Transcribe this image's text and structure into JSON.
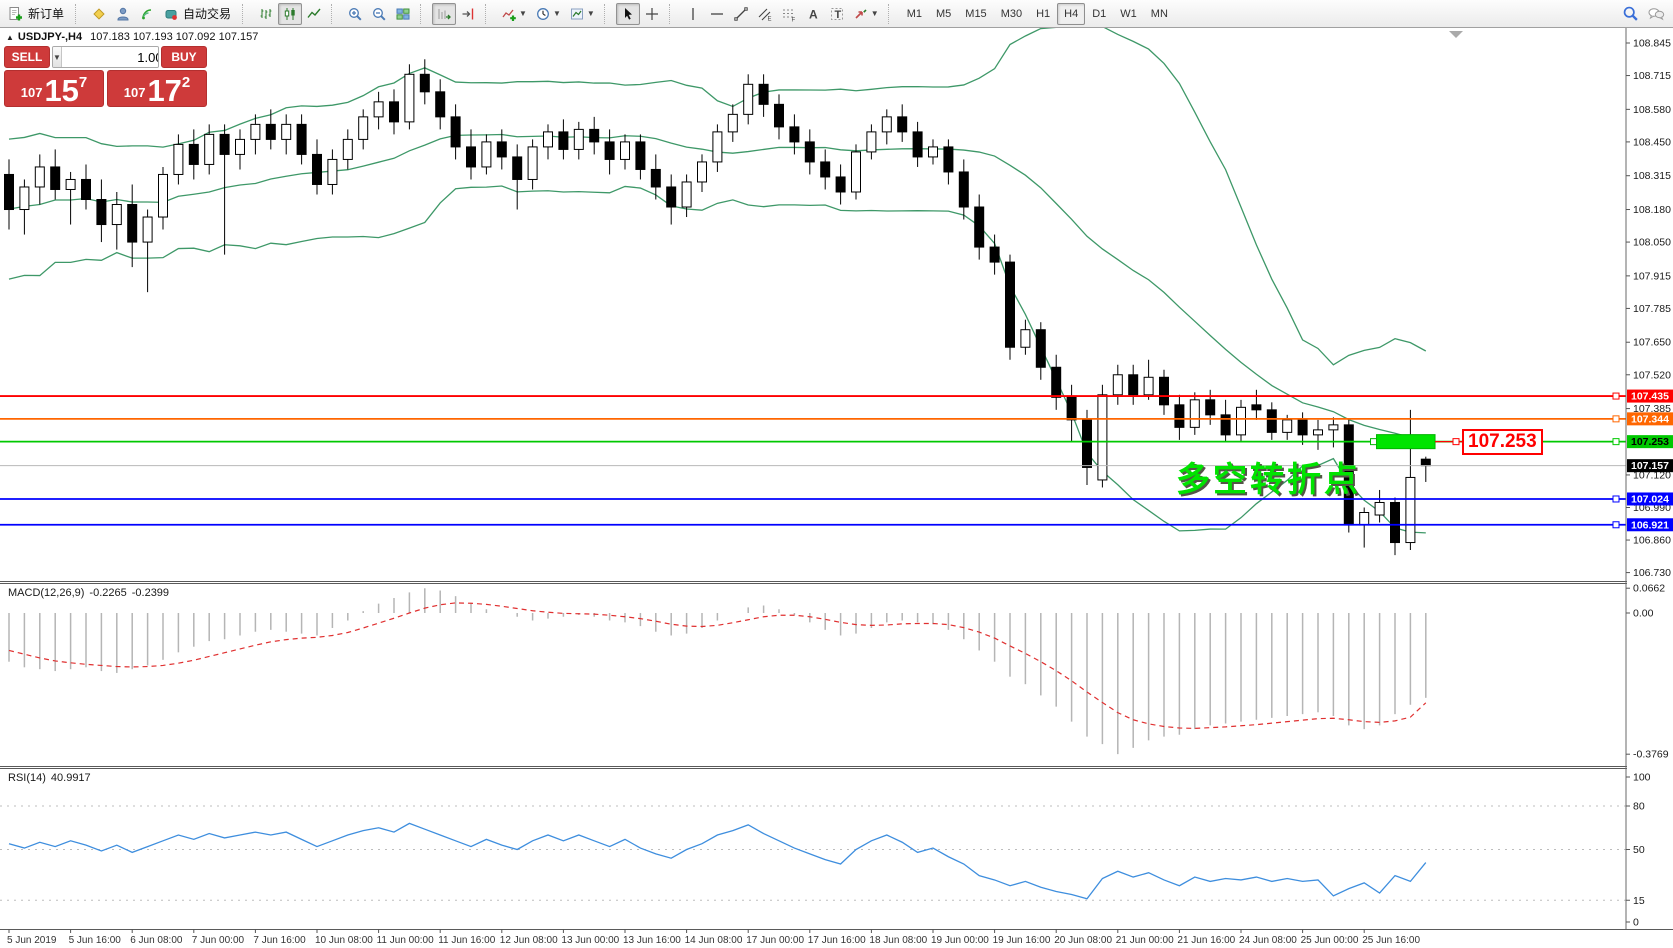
{
  "toolbar": {
    "new_order_label": "新订单",
    "autotrading_label": "自动交易",
    "timeframes": [
      "M1",
      "M5",
      "M15",
      "M30",
      "H1",
      "H4",
      "D1",
      "W1",
      "MN"
    ],
    "active_timeframe": "H4"
  },
  "chart": {
    "symbol": "USDJPY-,H4",
    "ohlc_text": "107.183 107.193 107.092 107.157",
    "collapse_arrow": "▲"
  },
  "trade_panel": {
    "sell_label": "SELL",
    "buy_label": "BUY",
    "volume": "1.00",
    "sell_price": {
      "prefix": "107",
      "big": "15",
      "sup": "7"
    },
    "buy_price": {
      "prefix": "107",
      "big": "17",
      "sup": "2"
    }
  },
  "objects": {
    "annotation": {
      "text": "多空转折点",
      "color": "#00E400"
    },
    "price_label": {
      "text": "107.253",
      "color": "#FF0000"
    },
    "rectangle": {
      "color": "#00E400",
      "price_top": 107.281,
      "price_bottom": 107.225,
      "bar_start": 88.8,
      "bar_end": 92.6
    }
  },
  "chart_data": {
    "type": "candlestick",
    "symbol": "USDJPY-,H4",
    "timeframe": "H4",
    "ohlc_display": [
      "107.183",
      "107.193",
      "107.092",
      "107.157"
    ],
    "x_labels": [
      "5 Jun 2019",
      "5 Jun 16:00",
      "6 Jun 08:00",
      "7 Jun 00:00",
      "7 Jun 16:00",
      "10 Jun 08:00",
      "11 Jun 00:00",
      "11 Jun 16:00",
      "12 Jun 08:00",
      "13 Jun 00:00",
      "13 Jun 16:00",
      "14 Jun 08:00",
      "17 Jun 00:00",
      "17 Jun 16:00",
      "18 Jun 08:00",
      "19 Jun 00:00",
      "19 Jun 16:00",
      "20 Jun 08:00",
      "21 Jun 00:00",
      "21 Jun 16:00",
      "24 Jun 08:00",
      "25 Jun 00:00",
      "25 Jun 16:00"
    ],
    "bars_per_label": 4,
    "price_axis_ticks": [
      "108.845",
      "108.715",
      "108.580",
      "108.450",
      "108.315",
      "108.180",
      "108.050",
      "107.915",
      "107.785",
      "107.650",
      "107.520",
      "107.385",
      "107.120",
      "106.990",
      "106.860",
      "106.730"
    ],
    "hlines": [
      {
        "price": 107.435,
        "color": "#FF0000",
        "label": "107.435",
        "text_color": "#FFFFFF"
      },
      {
        "price": 107.344,
        "color": "#FF6600",
        "label": "107.344",
        "text_color": "#FFFFFF"
      },
      {
        "price": 107.253,
        "color": "#00C800",
        "label": "107.253",
        "text_color": "#000000"
      },
      {
        "price": 107.024,
        "color": "#0000FF",
        "label": "107.024",
        "text_color": "#FFFFFF"
      },
      {
        "price": 106.921,
        "color": "#0000FF",
        "label": "106.921",
        "text_color": "#FFFFFF"
      }
    ],
    "current_price": {
      "value": 107.157,
      "label": "107.157",
      "badge_bg": "#000000"
    },
    "bollinger": {
      "period": 20,
      "deviation": 2,
      "color": "#3E9868",
      "seed": [
        108.05,
        108.2,
        107.9,
        108.3,
        108.1,
        108.4,
        108.0,
        108.25,
        108.15,
        108.35,
        107.95,
        108.2,
        108.3,
        108.05,
        108.25,
        108.4,
        108.1,
        108.3,
        108.2
      ]
    },
    "candles": [
      [
        108.32,
        108.38,
        108.1,
        108.18
      ],
      [
        108.18,
        108.3,
        108.08,
        108.27
      ],
      [
        108.27,
        108.4,
        108.2,
        108.35
      ],
      [
        108.35,
        108.42,
        108.22,
        108.26
      ],
      [
        108.26,
        108.33,
        108.12,
        108.3
      ],
      [
        108.3,
        108.36,
        108.18,
        108.22
      ],
      [
        108.22,
        108.3,
        108.05,
        108.12
      ],
      [
        108.12,
        108.25,
        108.02,
        108.2
      ],
      [
        108.2,
        108.28,
        107.95,
        108.05
      ],
      [
        108.05,
        108.18,
        107.85,
        108.15
      ],
      [
        108.15,
        108.35,
        108.1,
        108.32
      ],
      [
        108.32,
        108.48,
        108.28,
        108.44
      ],
      [
        108.44,
        108.5,
        108.3,
        108.36
      ],
      [
        108.36,
        108.52,
        108.32,
        108.48
      ],
      [
        108.48,
        108.52,
        108.0,
        108.4
      ],
      [
        108.4,
        108.5,
        108.34,
        108.46
      ],
      [
        108.46,
        108.56,
        108.4,
        108.52
      ],
      [
        108.52,
        108.58,
        108.42,
        108.46
      ],
      [
        108.46,
        108.56,
        108.4,
        108.52
      ],
      [
        108.52,
        108.56,
        108.36,
        108.4
      ],
      [
        108.4,
        108.46,
        108.24,
        108.28
      ],
      [
        108.28,
        108.42,
        108.24,
        108.38
      ],
      [
        108.38,
        108.5,
        108.34,
        108.46
      ],
      [
        108.46,
        108.58,
        108.42,
        108.55
      ],
      [
        108.55,
        108.65,
        108.5,
        108.61
      ],
      [
        108.61,
        108.66,
        108.48,
        108.53
      ],
      [
        108.53,
        108.76,
        108.5,
        108.72
      ],
      [
        108.72,
        108.78,
        108.6,
        108.65
      ],
      [
        108.65,
        108.7,
        108.5,
        108.55
      ],
      [
        108.55,
        108.6,
        108.38,
        108.43
      ],
      [
        108.43,
        108.5,
        108.3,
        108.35
      ],
      [
        108.35,
        108.48,
        108.32,
        108.45
      ],
      [
        108.45,
        108.5,
        108.34,
        108.39
      ],
      [
        108.39,
        108.44,
        108.18,
        108.3
      ],
      [
        108.3,
        108.46,
        108.26,
        108.43
      ],
      [
        108.43,
        108.52,
        108.38,
        108.49
      ],
      [
        108.49,
        108.54,
        108.38,
        108.42
      ],
      [
        108.42,
        108.53,
        108.38,
        108.5
      ],
      [
        108.5,
        108.55,
        108.4,
        108.45
      ],
      [
        108.45,
        108.5,
        108.32,
        108.38
      ],
      [
        108.38,
        108.48,
        108.34,
        108.45
      ],
      [
        108.45,
        108.48,
        108.3,
        108.34
      ],
      [
        108.34,
        108.4,
        108.22,
        108.27
      ],
      [
        108.27,
        108.32,
        108.12,
        108.19
      ],
      [
        108.19,
        108.32,
        108.15,
        108.29
      ],
      [
        108.29,
        108.4,
        108.25,
        108.37
      ],
      [
        108.37,
        108.52,
        108.33,
        108.49
      ],
      [
        108.49,
        108.6,
        108.45,
        108.56
      ],
      [
        108.56,
        108.72,
        108.52,
        108.68
      ],
      [
        108.68,
        108.72,
        108.55,
        108.6
      ],
      [
        108.6,
        108.64,
        108.46,
        108.51
      ],
      [
        108.51,
        108.56,
        108.4,
        108.45
      ],
      [
        108.45,
        108.5,
        108.32,
        108.37
      ],
      [
        108.37,
        108.42,
        108.26,
        108.31
      ],
      [
        108.31,
        108.36,
        108.2,
        108.25
      ],
      [
        108.25,
        108.44,
        108.22,
        108.41
      ],
      [
        108.41,
        108.52,
        108.38,
        108.49
      ],
      [
        108.49,
        108.58,
        108.44,
        108.55
      ],
      [
        108.55,
        108.6,
        108.45,
        108.49
      ],
      [
        108.49,
        108.53,
        108.35,
        108.39
      ],
      [
        108.39,
        108.46,
        108.36,
        108.43
      ],
      [
        108.43,
        108.46,
        108.28,
        108.33
      ],
      [
        108.33,
        108.38,
        108.14,
        108.19
      ],
      [
        108.19,
        108.24,
        107.98,
        108.03
      ],
      [
        108.03,
        108.08,
        107.92,
        107.97
      ],
      [
        107.97,
        108.0,
        107.58,
        107.63
      ],
      [
        107.63,
        107.74,
        107.6,
        107.7
      ],
      [
        107.7,
        107.73,
        107.5,
        107.55
      ],
      [
        107.55,
        107.6,
        107.38,
        107.43
      ],
      [
        107.43,
        107.48,
        107.25,
        107.34
      ],
      [
        107.34,
        107.38,
        107.08,
        107.15
      ],
      [
        107.1,
        107.48,
        107.07,
        107.44
      ],
      [
        107.44,
        107.56,
        107.4,
        107.52
      ],
      [
        107.52,
        107.56,
        107.4,
        107.44
      ],
      [
        107.44,
        107.58,
        107.42,
        107.51
      ],
      [
        107.51,
        107.54,
        107.36,
        107.4
      ],
      [
        107.4,
        107.44,
        107.26,
        107.31
      ],
      [
        107.31,
        107.45,
        107.28,
        107.42
      ],
      [
        107.42,
        107.46,
        107.32,
        107.36
      ],
      [
        107.36,
        107.42,
        107.25,
        107.28
      ],
      [
        107.28,
        107.42,
        107.25,
        107.39
      ],
      [
        107.4,
        107.46,
        107.34,
        107.38
      ],
      [
        107.38,
        107.41,
        107.26,
        107.29
      ],
      [
        107.29,
        107.36,
        107.26,
        107.34
      ],
      [
        107.34,
        107.37,
        107.24,
        107.28
      ],
      [
        107.28,
        107.34,
        107.22,
        107.3
      ],
      [
        107.3,
        107.35,
        107.23,
        107.32
      ],
      [
        107.32,
        107.34,
        106.89,
        106.92
      ],
      [
        106.92,
        106.99,
        106.83,
        106.97
      ],
      [
        106.96,
        107.06,
        106.93,
        107.01
      ],
      [
        107.01,
        107.03,
        106.8,
        106.85
      ],
      [
        106.85,
        107.38,
        106.82,
        107.11
      ],
      [
        107.183,
        107.193,
        107.092,
        107.157
      ]
    ],
    "macd": {
      "label": "MACD(12,26,9)",
      "value_main": "-0.2265",
      "value_signal": "-0.2399",
      "axis_labels": [
        "0.0662",
        "0.00",
        "-0.3769"
      ],
      "axis_values": [
        0.0662,
        0,
        -0.3769
      ],
      "histogram": [
        -0.13,
        -0.145,
        -0.15,
        -0.155,
        -0.15,
        -0.145,
        -0.155,
        -0.16,
        -0.15,
        -0.14,
        -0.125,
        -0.105,
        -0.09,
        -0.075,
        -0.07,
        -0.06,
        -0.05,
        -0.045,
        -0.05,
        -0.055,
        -0.06,
        -0.04,
        -0.02,
        0.005,
        0.025,
        0.04,
        0.055,
        0.066,
        0.06,
        0.045,
        0.025,
        0.01,
        0,
        -0.01,
        -0.02,
        -0.015,
        -0.01,
        -0.005,
        -0.01,
        -0.02,
        -0.025,
        -0.035,
        -0.05,
        -0.06,
        -0.055,
        -0.04,
        -0.02,
        0,
        0.015,
        0.02,
        0.01,
        -0.005,
        -0.025,
        -0.045,
        -0.06,
        -0.055,
        -0.04,
        -0.025,
        -0.02,
        -0.025,
        -0.03,
        -0.045,
        -0.07,
        -0.1,
        -0.13,
        -0.17,
        -0.19,
        -0.22,
        -0.25,
        -0.29,
        -0.33,
        -0.35,
        -0.3769,
        -0.36,
        -0.34,
        -0.33,
        -0.325,
        -0.31,
        -0.3,
        -0.295,
        -0.29,
        -0.285,
        -0.28,
        -0.275,
        -0.27,
        -0.265,
        -0.275,
        -0.3,
        -0.31,
        -0.3,
        -0.27,
        -0.245,
        -0.2265
      ],
      "signal": [
        -0.1,
        -0.11,
        -0.12,
        -0.128,
        -0.133,
        -0.137,
        -0.14,
        -0.143,
        -0.144,
        -0.143,
        -0.14,
        -0.134,
        -0.126,
        -0.116,
        -0.106,
        -0.096,
        -0.086,
        -0.077,
        -0.071,
        -0.067,
        -0.065,
        -0.06,
        -0.052,
        -0.04,
        -0.027,
        -0.014,
        0,
        0.013,
        0.022,
        0.027,
        0.026,
        0.023,
        0.018,
        0.012,
        0.006,
        0.002,
        -0.001,
        -0.002,
        -0.003,
        -0.006,
        -0.01,
        -0.015,
        -0.022,
        -0.03,
        -0.035,
        -0.036,
        -0.033,
        -0.026,
        -0.018,
        -0.01,
        -0.006,
        -0.006,
        -0.01,
        -0.017,
        -0.025,
        -0.031,
        -0.033,
        -0.032,
        -0.029,
        -0.028,
        -0.028,
        -0.031,
        -0.039,
        -0.051,
        -0.067,
        -0.088,
        -0.108,
        -0.13,
        -0.154,
        -0.181,
        -0.211,
        -0.239,
        -0.266,
        -0.285,
        -0.296,
        -0.303,
        -0.307,
        -0.308,
        -0.306,
        -0.304,
        -0.301,
        -0.298,
        -0.294,
        -0.29,
        -0.286,
        -0.282,
        -0.281,
        -0.285,
        -0.29,
        -0.292,
        -0.288,
        -0.278,
        -0.2399
      ],
      "colors": {
        "histogram": "#B5B5B5",
        "signal": "#E03030"
      }
    },
    "rsi": {
      "label": "RSI(14)",
      "value": "40.9917",
      "axis_labels": [
        "100",
        "80",
        "50",
        "15",
        "0"
      ],
      "levels": [
        80,
        50,
        15
      ],
      "color": "#3E8EDE",
      "series": [
        54,
        51,
        55,
        52,
        56,
        53,
        49,
        53,
        48,
        52,
        56,
        60,
        57,
        61,
        58,
        60,
        62,
        60,
        62,
        57,
        52,
        56,
        60,
        63,
        65,
        62,
        68,
        64,
        60,
        56,
        52,
        57,
        53,
        50,
        56,
        60,
        56,
        60,
        56,
        52,
        57,
        51,
        47,
        44,
        50,
        54,
        60,
        63,
        67,
        61,
        56,
        51,
        47,
        43,
        40,
        50,
        56,
        60,
        55,
        48,
        51,
        45,
        40,
        32,
        29,
        25,
        28,
        24,
        21,
        19,
        16,
        30,
        35,
        31,
        34,
        29,
        25,
        31,
        28,
        30,
        29,
        31,
        28,
        30,
        28,
        29,
        18,
        23,
        27,
        20,
        32,
        28,
        41
      ]
    }
  }
}
